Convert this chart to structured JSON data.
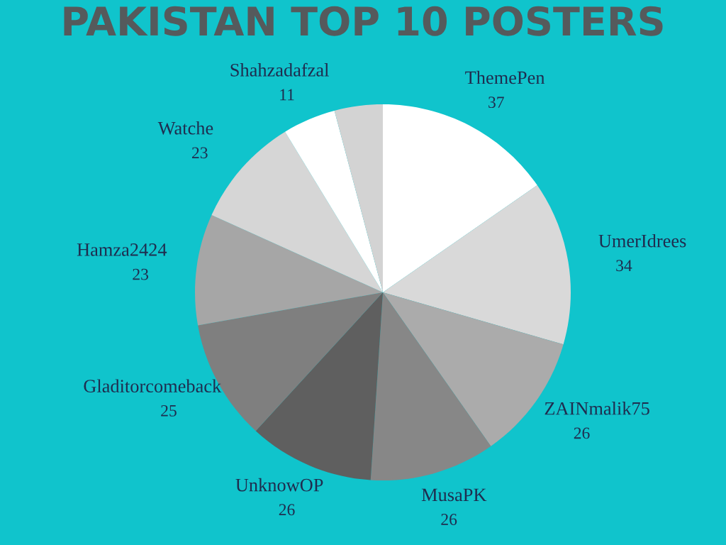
{
  "chart_data": {
    "type": "pie",
    "title": "PAKISTAN TOP 10 POSTERS",
    "categories": [
      "ThemePen",
      "UmerIdrees",
      "ZAINmalik75",
      "MusaPK",
      "UnknowOP",
      "Gladitorcomeback",
      "Hamza2424",
      "Watche",
      "Shahzadafzal",
      null
    ],
    "values": [
      37,
      34,
      26,
      26,
      26,
      25,
      23,
      23,
      11,
      10
    ],
    "value_labels": [
      "37",
      "34",
      "26",
      "26",
      "26",
      "25",
      "23",
      "23",
      "11",
      null
    ],
    "colors": [
      "#ffffff",
      "#d9d9d9",
      "#ababab",
      "#878787",
      "#5f5f5f",
      "#7f7f7f",
      "#a6a6a6",
      "#d6d6d6",
      "#ffffff",
      "#d3d3d3"
    ]
  }
}
